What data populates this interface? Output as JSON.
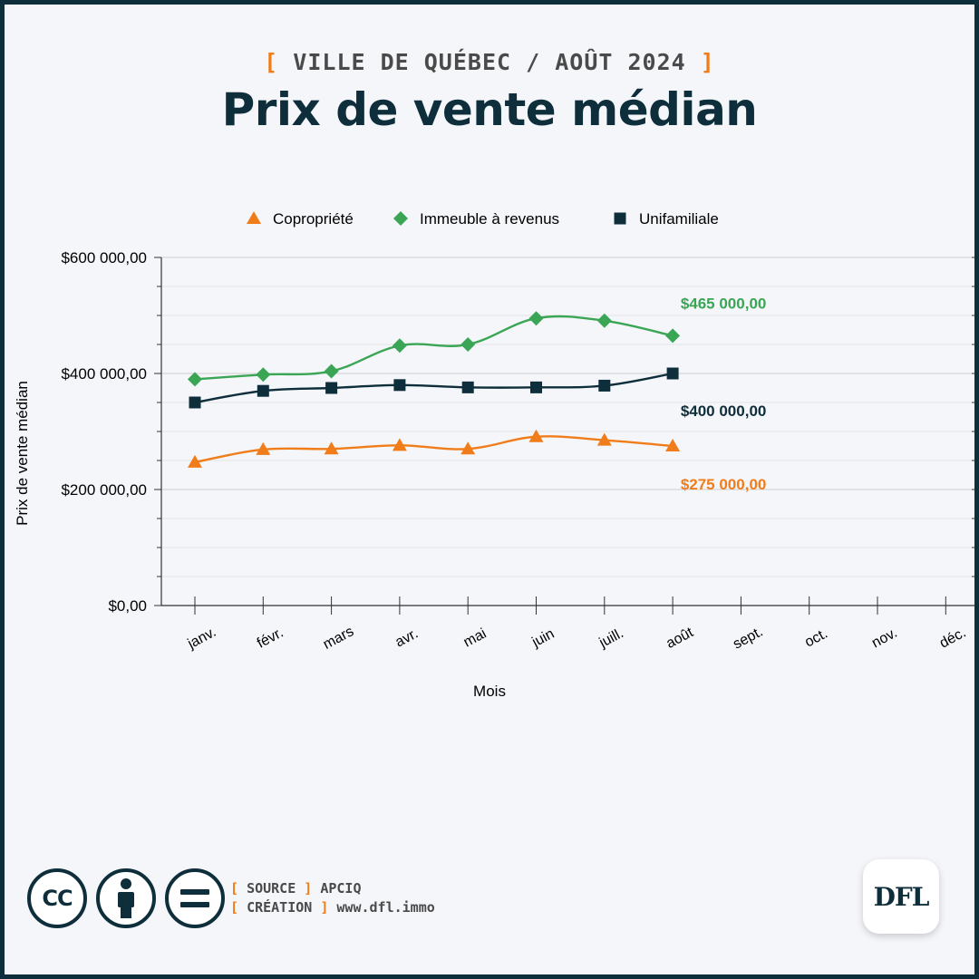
{
  "header": {
    "supertitle_open": "[",
    "supertitle_text": "VILLE DE QUÉBEC / AOÛT 2024",
    "supertitle_close": "]",
    "title": "Prix de vente médian"
  },
  "colors": {
    "copropriete": "#f07d1a",
    "immeuble": "#3aa655",
    "unifamiliale": "#0d2e3a",
    "grid": "#dcdcdc",
    "axis": "#333333"
  },
  "chart_data": {
    "type": "line",
    "xlabel": "Mois",
    "ylabel": "Prix de vente médian",
    "categories": [
      "janv.",
      "févr.",
      "mars",
      "avr.",
      "mai",
      "juin",
      "juill.",
      "août",
      "sept.",
      "oct.",
      "nov.",
      "déc."
    ],
    "ylim": [
      0,
      600000
    ],
    "yticks": [
      {
        "value": 0,
        "label": "$0,00"
      },
      {
        "value": 200000,
        "label": "$200 000,00"
      },
      {
        "value": 400000,
        "label": "$400 000,00"
      },
      {
        "value": 600000,
        "label": "$600 000,00"
      }
    ],
    "legend_position": "top-center",
    "grid": true,
    "series": [
      {
        "name": "Copropriété",
        "marker": "triangle",
        "color": "#f07d1a",
        "values": [
          247000,
          269000,
          270000,
          276000,
          270000,
          291000,
          285000,
          275000,
          null,
          null,
          null,
          null
        ],
        "end_label": "$275 000,00"
      },
      {
        "name": "Immeuble à revenus",
        "marker": "diamond",
        "color": "#3aa655",
        "values": [
          390000,
          398000,
          404000,
          448000,
          450000,
          495000,
          491000,
          465000,
          null,
          null,
          null,
          null
        ],
        "end_label": "$465 000,00"
      },
      {
        "name": "Unifamiliale",
        "marker": "square",
        "color": "#0d2e3a",
        "values": [
          350000,
          370000,
          375000,
          380000,
          376000,
          376000,
          379000,
          400000,
          null,
          null,
          null,
          null
        ],
        "end_label": "$400 000,00"
      }
    ]
  },
  "footer": {
    "cc_icon_text": "CC",
    "source_open": "[",
    "source_key": "SOURCE",
    "source_close": "]",
    "source_value": "APCIQ",
    "creation_open": "[",
    "creation_key": "CRÉATION",
    "creation_close": "]",
    "creation_value": "www.dfl.immo",
    "logo_text": "DFL"
  }
}
